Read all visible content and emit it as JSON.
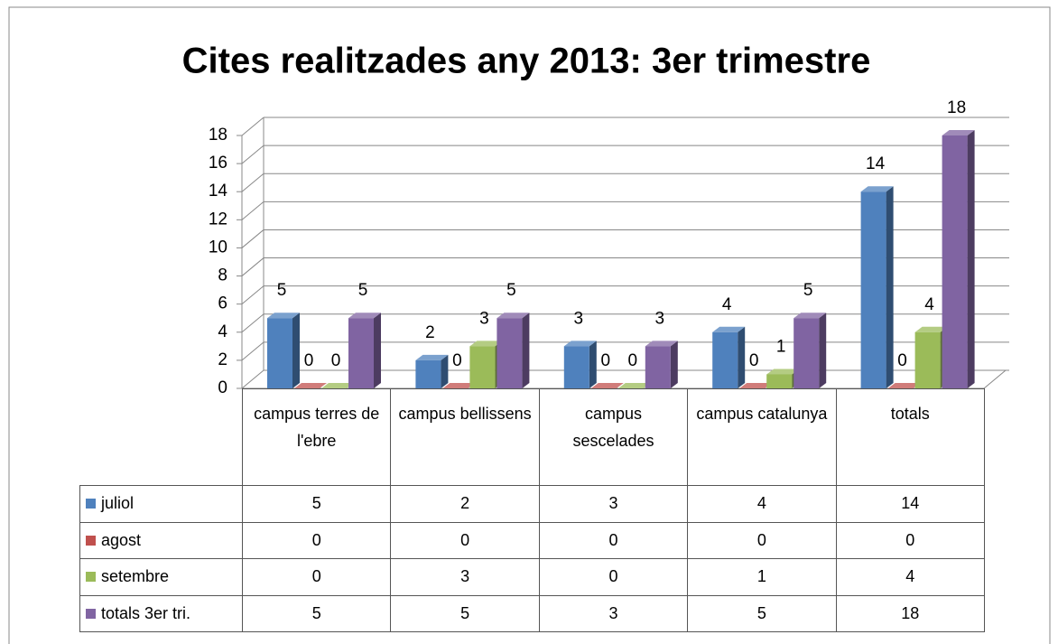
{
  "chart_data": {
    "type": "bar3d",
    "title": "Cites realitzades any 2013: 3er trimestre",
    "categories": [
      "campus terres de l'ebre",
      "campus bellissens",
      "campus sescelades",
      "campus catalunya",
      "totals"
    ],
    "series": [
      {
        "name": "juliol",
        "color": "#4f81bd",
        "values": [
          5,
          2,
          3,
          4,
          14
        ]
      },
      {
        "name": "agost",
        "color": "#c0504d",
        "values": [
          0,
          0,
          0,
          0,
          0
        ]
      },
      {
        "name": "setembre",
        "color": "#9bbb59",
        "values": [
          0,
          3,
          0,
          1,
          4
        ]
      },
      {
        "name": "totals 3er tri.",
        "color": "#8064a2",
        "values": [
          5,
          5,
          3,
          5,
          18
        ]
      }
    ],
    "ylim": [
      0,
      18
    ],
    "yticks": [
      0,
      2,
      4,
      6,
      8,
      10,
      12,
      14,
      16,
      18
    ],
    "grid": true,
    "data_table": true
  }
}
